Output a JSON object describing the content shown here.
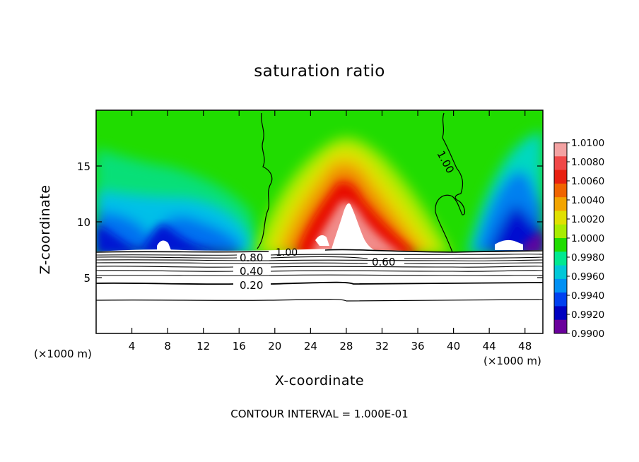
{
  "chart_data": {
    "type": "heatmap",
    "title": "saturation ratio",
    "xlabel": "X-coordinate",
    "ylabel": "Z-coordinate",
    "x_unit": "(×1000 m)",
    "z_unit": "(×1000 m)",
    "xlim": [
      0,
      50
    ],
    "ylim": [
      0,
      20
    ],
    "x_ticks": [
      4,
      8,
      12,
      16,
      20,
      24,
      28,
      32,
      36,
      40,
      44,
      48
    ],
    "y_ticks": [
      5,
      10,
      15
    ],
    "colorbar": {
      "levels": [
        1.01,
        1.008,
        1.006,
        1.004,
        1.002,
        1.0,
        0.998,
        0.996,
        0.994,
        0.992,
        0.99
      ],
      "labels": [
        "1.0100",
        "1.0080",
        "1.0060",
        "1.0040",
        "1.0020",
        "1.0000",
        "0.9980",
        "0.9960",
        "0.9940",
        "0.9920",
        "0.9900"
      ],
      "colors": [
        "#f3a2a2",
        "#f04848",
        "#e82010",
        "#f06400",
        "#f2a400",
        "#e0e000",
        "#a8ec00",
        "#20dc00",
        "#00e890",
        "#00c8d8",
        "#0090f4",
        "#0040f0",
        "#0000c0",
        "#6a009c"
      ]
    },
    "contour_labels": [
      {
        "text": "1.00",
        "x": 40.5,
        "z": 15.5
      },
      {
        "text": "1.00",
        "x": 21.8,
        "z": 7.3
      },
      {
        "text": "0.80",
        "x": 17.2,
        "z": 6.8
      },
      {
        "text": "0.60",
        "x": 32.5,
        "z": 6.4
      },
      {
        "text": "0.40",
        "x": 17.2,
        "z": 5.6
      },
      {
        "text": "0.20",
        "x": 17.2,
        "z": 4.3
      }
    ],
    "contour_interval_note": "CONTOUR INTERVAL = 1.000E-01",
    "grid": false
  }
}
